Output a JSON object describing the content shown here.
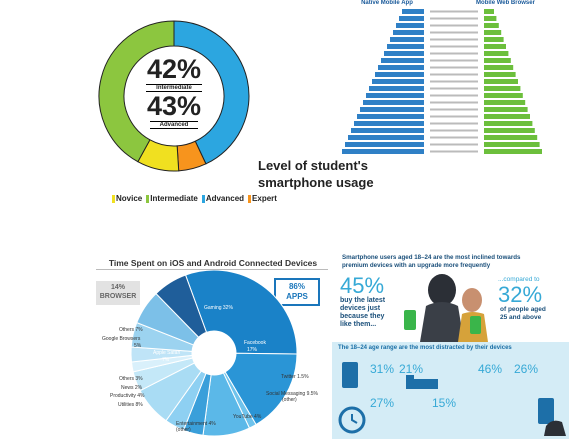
{
  "donut": {
    "big1": "42%",
    "label1": "Intermediate",
    "big2": "43%",
    "label2": "Advanced",
    "caption_line1": "Level of student's",
    "caption_line2": "smartphone usage",
    "legend": [
      {
        "label": "Novice",
        "color": "#f0e020"
      },
      {
        "label": "Intermediate",
        "color": "#8cc63f"
      },
      {
        "label": "Advanced",
        "color": "#2ca6e0"
      },
      {
        "label": "Expert",
        "color": "#f7941d"
      }
    ]
  },
  "bars_header": {
    "left": "Native Mobile App",
    "right": "Mobile Web Browser"
  },
  "ios": {
    "title": "Time Spent on iOS and Android Connected Devices",
    "browser_pct": "14%",
    "browser_label": "BROWSER",
    "apps_pct": "86%",
    "apps_label": "APPS",
    "labels": {
      "gaming": "Gaming 32%",
      "facebook": "Facebook",
      "facebook_pct": "17%",
      "twitter": "Twitter 1.5%",
      "social": "Social Messaging 9.5%",
      "social_sub": "(other)",
      "youtube": "YouTube 4%",
      "entertain": "Entertainment 4%",
      "entertain_sub": "(other)",
      "utilities": "Utilities 8%",
      "productivity": "Productivity 4%",
      "news": "News 2%",
      "others3": "Others 3%",
      "google": "Google Browsers",
      "google_pct": "5%",
      "others7": "Others 7%",
      "safari": "Apple Safari",
      "safari_pct": "7%"
    }
  },
  "info": {
    "head1": "Smartphone users aged 18–24 are the most inclined towards",
    "head2": "premium devices with an upgrade more frequently",
    "p45": "45%",
    "t45a": "buy the latest",
    "t45b": "devices just",
    "t45c": "because they",
    "t45d": "like them...",
    "compared": "...compared to",
    "p32": "32%",
    "t32a": "of people aged",
    "t32b": "25 and above",
    "band": "The 18–24 age range are the most distracted by their devices",
    "p31": "31%",
    "p21": "21%",
    "p27": "27%",
    "p15": "15%",
    "p46": "46%",
    "p26": "26%"
  },
  "chart_data": [
    {
      "type": "pie",
      "title": "Level of student's smartphone usage",
      "categories": [
        "Novice",
        "Intermediate",
        "Advanced",
        "Expert"
      ],
      "values": [
        9,
        42,
        43,
        6
      ]
    },
    {
      "type": "pie",
      "title": "Time Spent on iOS and Android Connected Devices",
      "categories": [
        "Gaming",
        "Facebook",
        "Twitter",
        "Social Messaging (other)",
        "YouTube",
        "Entertainment (other)",
        "Utilities",
        "Productivity",
        "News",
        "Others",
        "Google Browsers",
        "Others",
        "Apple Safari"
      ],
      "values": [
        32,
        17,
        1.5,
        9.5,
        4,
        4,
        8,
        4,
        2,
        3,
        5,
        7,
        7
      ]
    }
  ]
}
